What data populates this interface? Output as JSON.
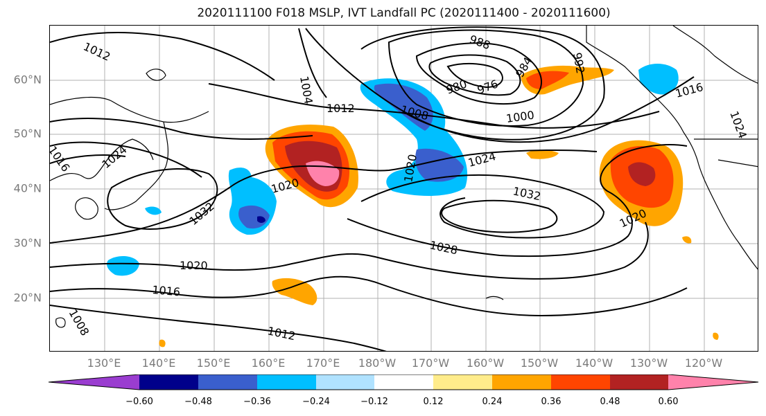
{
  "title": "2020111100 F018 MSLP, IVT Landfall PC (2020111400 - 2020111600)",
  "lat_labels": [
    "60°N",
    "50°N",
    "40°N",
    "30°N",
    "20°N"
  ],
  "lon_labels": [
    "130°E",
    "140°E",
    "150°E",
    "160°E",
    "170°E",
    "180°W",
    "170°W",
    "160°W",
    "150°W",
    "140°W",
    "130°W",
    "120°W"
  ],
  "isobar_labels": [
    "1012",
    "1004",
    "988",
    "984",
    "980",
    "976",
    "992",
    "1016",
    "1012",
    "1008",
    "1000",
    "1024",
    "1016",
    "1020",
    "1024",
    "1032",
    "1020",
    "1032",
    "1028",
    "1020",
    "1016",
    "1012",
    "1008",
    "1020",
    "1024"
  ],
  "colorbar": {
    "ticks": [
      "−0.60",
      "−0.48",
      "−0.36",
      "−0.24",
      "−0.12",
      "0.12",
      "0.24",
      "0.36",
      "0.48",
      "0.60"
    ],
    "colors": {
      "neg_extend": "#9a3dd0",
      "neg_060": "#00008b",
      "neg_048": "#3a5fcd",
      "neg_036": "#00bfff",
      "neg_024": "#b0e2ff",
      "neutral": "#ffffff",
      "pos_012": "#ffec8b",
      "pos_024": "#ffa500",
      "pos_036": "#ff4500",
      "pos_048": "#b22222",
      "pos_extend": "#ff82ab"
    }
  }
}
